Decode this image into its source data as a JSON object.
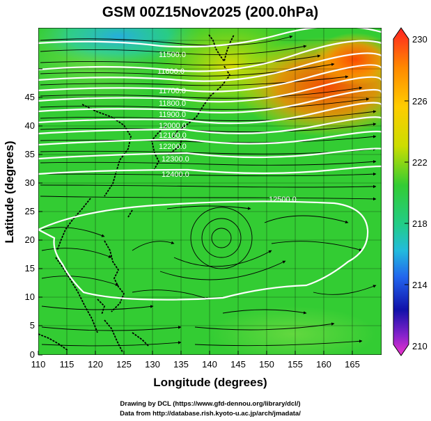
{
  "figure": {
    "title": "GSM 00Z15Nov2025 (200.0hPa)",
    "xlabel": "Longitude (degrees)",
    "ylabel": "Latitude  (degrees)",
    "credit_line1": "Drawing by DCL (https://www.gfd-dennou.org/library/dcl/)",
    "credit_line2": "Data from http://database.rish.kyoto-u.ac.jp/arch/jmadata/"
  },
  "map": {
    "xlim": [
      110,
      170
    ],
    "ylim": [
      0,
      50
    ],
    "xticks": [
      "110",
      "115",
      "120",
      "125",
      "130",
      "135",
      "140",
      "145",
      "150",
      "155",
      "160",
      "165"
    ],
    "yticks": [
      "0",
      "5",
      "10",
      "15",
      "20",
      "25",
      "30",
      "35",
      "40",
      "45"
    ],
    "contour_labels": [
      "11500.0",
      "11600.0",
      "11700.0",
      "11800.0",
      "11900.0",
      "12000.0",
      "12100.0",
      "12200.0",
      "12300.0",
      "12400.0",
      "12500.0"
    ],
    "colorbar": {
      "ticks": [
        "230",
        "226",
        "222",
        "218",
        "214",
        "210"
      ],
      "range": [
        210,
        230
      ]
    },
    "colors": {
      "background": "#ffffff",
      "field_mid": "#33cc33",
      "field_warm": "#ff7700",
      "field_cold": "#22bbdd",
      "contour": "#ffffff",
      "coast": "#000000"
    }
  }
}
